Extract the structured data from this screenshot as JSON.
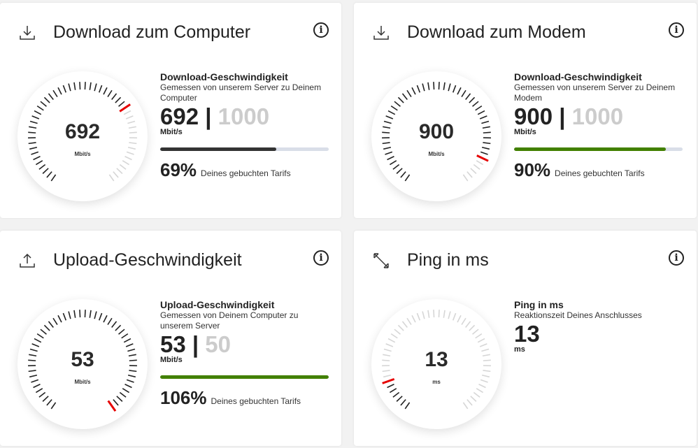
{
  "cards": [
    {
      "icon": "download-icon",
      "title": "Download zum Computer",
      "heading": "Download-Geschwindigkeit",
      "subtitle": "Gemessen von unserem Server zu Deinem Computer",
      "value": "692",
      "max": "1000",
      "unit": "Mbit/s",
      "gauge_fraction": 0.69,
      "progress_percent": 69,
      "bar_color": "#333333",
      "percent_label": "69%",
      "percent_text": "Deines gebuchten Tarifs"
    },
    {
      "icon": "download-icon",
      "title": "Download zum Modem",
      "heading": "Download-Geschwindigkeit",
      "subtitle": "Gemessen von unserem Server zu Deinem Modem",
      "value": "900",
      "max": "1000",
      "unit": "Mbit/s",
      "gauge_fraction": 0.9,
      "progress_percent": 90,
      "bar_color": "#428000",
      "percent_label": "90%",
      "percent_text": "Deines gebuchten Tarifs"
    },
    {
      "icon": "upload-icon",
      "title": "Upload-Geschwindigkeit",
      "heading": "Upload-Geschwindigkeit",
      "subtitle": "Gemessen von Deinem Computer zu unserem Server",
      "value": "53",
      "max": "50",
      "unit": "Mbit/s",
      "gauge_fraction": 1.0,
      "progress_percent": 100,
      "bar_color": "#428000",
      "percent_label": "106%",
      "percent_text": "Deines gebuchten Tarifs"
    },
    {
      "icon": "ping-arrows-icon",
      "title": "Ping in ms",
      "heading": "Ping in ms",
      "subtitle": "Reaktionszeit Deines Anschlusses",
      "value": "13",
      "unit": "ms",
      "gauge_fraction": 0.13
    }
  ],
  "colors": {
    "active_tick": "#222222",
    "marker_tick": "#e60000",
    "inactive_tick": "#d6d6d6"
  }
}
